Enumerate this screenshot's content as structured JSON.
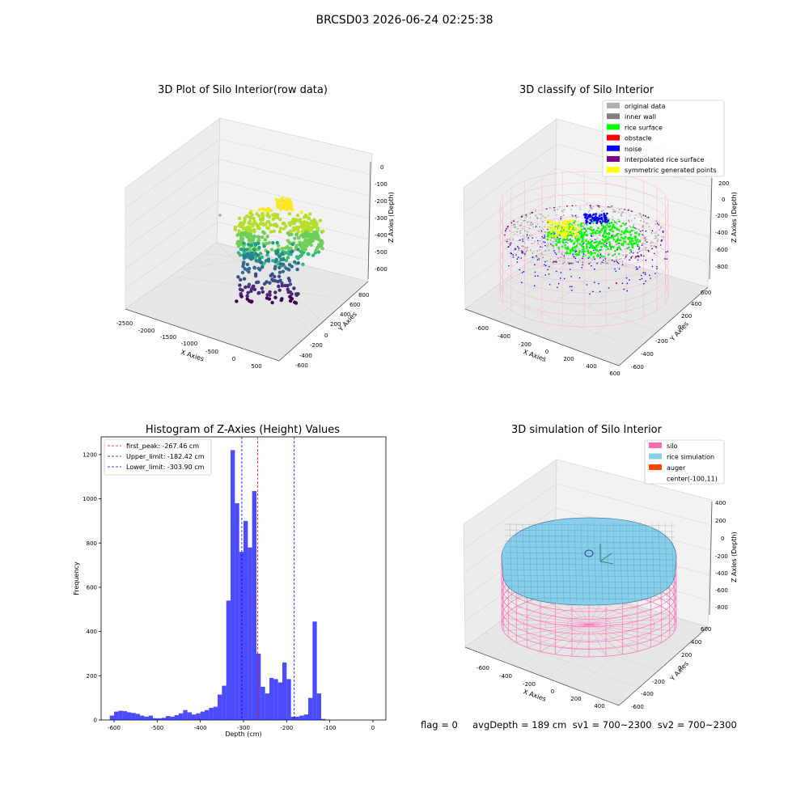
{
  "figure": {
    "suptitle": "BRCSD03 2026-06-24 02:25:38",
    "footer": "flag = 0     avgDepth = 189 cm  sv1 = 700~2300  sv2 = 700~2300"
  },
  "panels": {
    "raw": {
      "title": "3D Plot of Silo Interior(row data)",
      "xlabel": "X Axies",
      "ylabel": "Y Axies",
      "zlabel": "Z Axies (Depth)",
      "xticks": [
        "-2500",
        "-2000",
        "-1500",
        "-1000",
        "-500",
        "0",
        "500"
      ],
      "yticks": [
        "-600",
        "-400",
        "-200",
        "0",
        "200",
        "400",
        "600",
        "800"
      ],
      "zticks": [
        "0",
        "-100",
        "-200",
        "-300",
        "-400",
        "-500",
        "-600"
      ]
    },
    "classify": {
      "title": "3D classify of Silo Interior",
      "xlabel": "X Axies",
      "ylabel": "Y Axies",
      "zlabel": "Z Axies (Depth)",
      "xticks": [
        "-600",
        "-400",
        "-200",
        "0",
        "200",
        "400",
        "600"
      ],
      "yticks": [
        "-600",
        "-400",
        "-200",
        "0",
        "200",
        "400",
        "600"
      ],
      "zticks": [
        "200",
        "0",
        "-200",
        "-400",
        "-600",
        "-800"
      ],
      "legend": [
        {
          "label": "original data",
          "color": "#b0b0b0"
        },
        {
          "label": "inner wall",
          "color": "#808080"
        },
        {
          "label": "rice surface",
          "color": "#00ff00"
        },
        {
          "label": "obstacle",
          "color": "#ff0000"
        },
        {
          "label": "noise",
          "color": "#0000ff"
        },
        {
          "label": "interpolated rice surface",
          "color": "#800080"
        },
        {
          "label": "symmetric generated points",
          "color": "#ffff00"
        }
      ]
    },
    "simulation": {
      "title": "3D simulation of Silo Interior",
      "xlabel": "X Axies",
      "ylabel": "Y Axies",
      "zlabel": "Z Axies (Depth)",
      "xticks": [
        "-600",
        "-400",
        "-200",
        "0",
        "200",
        "400"
      ],
      "yticks": [
        "-600",
        "-400",
        "-200",
        "0",
        "200",
        "400",
        "600"
      ],
      "zticks": [
        "400",
        "200",
        "0",
        "-200",
        "-400",
        "-600",
        "-800"
      ],
      "legend": [
        {
          "label": "silo",
          "color": "#ff69b4"
        },
        {
          "label": "rice simulation",
          "color": "#87ceeb"
        },
        {
          "label": "auger",
          "color": "#ff4500"
        },
        {
          "label": "center(-100,11)",
          "color": ""
        }
      ]
    }
  },
  "chart_data": [
    {
      "type": "bar",
      "title": "Histogram of Z-Axies (Height) Values",
      "xlabel": "Depth (cm)",
      "ylabel": "Frequency",
      "xlim": [
        -630,
        30
      ],
      "ylim": [
        0,
        1280
      ],
      "bin_start": -610,
      "bin_width": 10,
      "x_ticks": [
        -600,
        -500,
        -400,
        -300,
        -200,
        -100,
        0
      ],
      "y_ticks": [
        0,
        200,
        400,
        600,
        800,
        1000,
        1200
      ],
      "bar_color": "#0000ff",
      "values": [
        20,
        38,
        42,
        40,
        35,
        32,
        28,
        20,
        15,
        20,
        8,
        8,
        10,
        18,
        15,
        22,
        30,
        45,
        35,
        25,
        30,
        38,
        45,
        55,
        60,
        115,
        155,
        540,
        1220,
        980,
        760,
        900,
        780,
        1035,
        300,
        150,
        120,
        190,
        185,
        170,
        260,
        185,
        15,
        15,
        20,
        25,
        100,
        445,
        120,
        5
      ],
      "vlines": [
        {
          "label": "first_peak: -267.46 cm",
          "x": -267.46,
          "color": "#ff0000"
        },
        {
          "label": "Upper_limit: -182.42 cm",
          "x": -182.42,
          "color": "#0000ff"
        },
        {
          "label": "Lower_limit: -303.90 cm",
          "x": -303.9,
          "color": "#0000ff"
        }
      ]
    }
  ]
}
